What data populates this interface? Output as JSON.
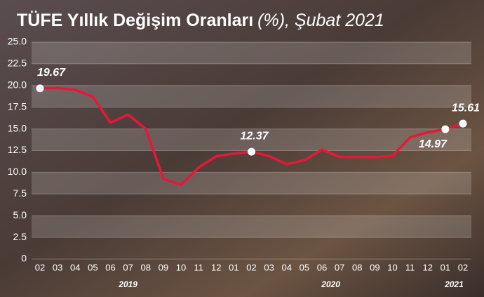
{
  "chart_data": {
    "type": "line",
    "title": "TÜFE Yıllık Değişim Oranları",
    "title_suffix": "(%), Şubat 2021",
    "categories": [
      "02",
      "03",
      "04",
      "05",
      "06",
      "07",
      "08",
      "09",
      "10",
      "11",
      "12",
      "01",
      "02",
      "03",
      "04",
      "05",
      "06",
      "07",
      "08",
      "09",
      "10",
      "11",
      "12",
      "01",
      "02"
    ],
    "years": [
      {
        "label": "2019",
        "count": 11
      },
      {
        "label": "2020",
        "count": 12
      },
      {
        "label": "2021",
        "count": 2
      }
    ],
    "series": [
      {
        "name": "TÜFE",
        "color": "#e8173a",
        "values": [
          19.67,
          19.71,
          19.5,
          18.71,
          15.72,
          16.65,
          15.01,
          9.26,
          8.55,
          10.56,
          11.84,
          12.15,
          12.37,
          11.86,
          10.94,
          11.39,
          12.62,
          11.76,
          11.77,
          11.75,
          11.89,
          14.03,
          14.6,
          14.97,
          15.61
        ]
      }
    ],
    "labeled": [
      0,
      12,
      23,
      24
    ],
    "ylim": [
      0,
      25
    ],
    "yticks": [
      0,
      {
        "value": 2.5,
        "label": "2.5"
      },
      {
        "value": 5,
        "label": "5.0"
      },
      {
        "value": 7.5,
        "label": "7.5"
      },
      {
        "value": 10,
        "label": "10.0"
      },
      {
        "value": 12.5,
        "label": "12.5"
      },
      {
        "value": 15,
        "label": "15.0"
      },
      {
        "value": 17.5,
        "label": "17.5"
      },
      {
        "value": 20,
        "label": "20.0"
      },
      {
        "value": 22.5,
        "label": "22.5"
      },
      {
        "value": 25,
        "label": "25.0"
      }
    ],
    "grid": true
  }
}
